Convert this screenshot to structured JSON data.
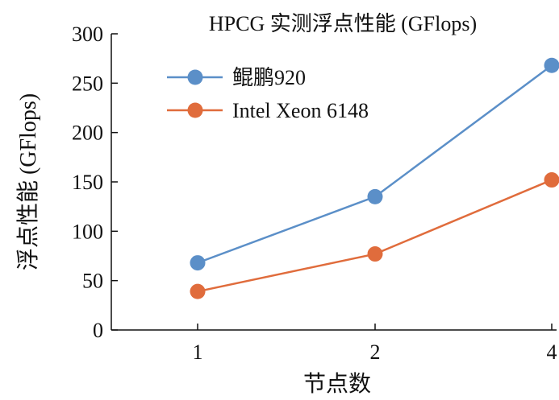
{
  "chart_data": {
    "type": "line",
    "title": "HPCG 实测浮点性能 (GFlops)",
    "xlabel": "节点数",
    "ylabel": "浮点性能 (GFlops)",
    "categories": [
      "1",
      "2",
      "4"
    ],
    "ylim": [
      0,
      300
    ],
    "yticks": [
      0,
      50,
      100,
      150,
      200,
      250,
      300
    ],
    "yticklabels": [
      "0",
      "50",
      "100",
      "150",
      "200",
      "250",
      "300"
    ],
    "grid": false,
    "legend_position": "top-left",
    "series": [
      {
        "name": "鲲鹏920",
        "color": "#5b8fc8",
        "values": [
          68,
          135,
          268
        ]
      },
      {
        "name": "Intel Xeon 6148",
        "color": "#e06c3c",
        "values": [
          39,
          77,
          152
        ]
      }
    ]
  }
}
